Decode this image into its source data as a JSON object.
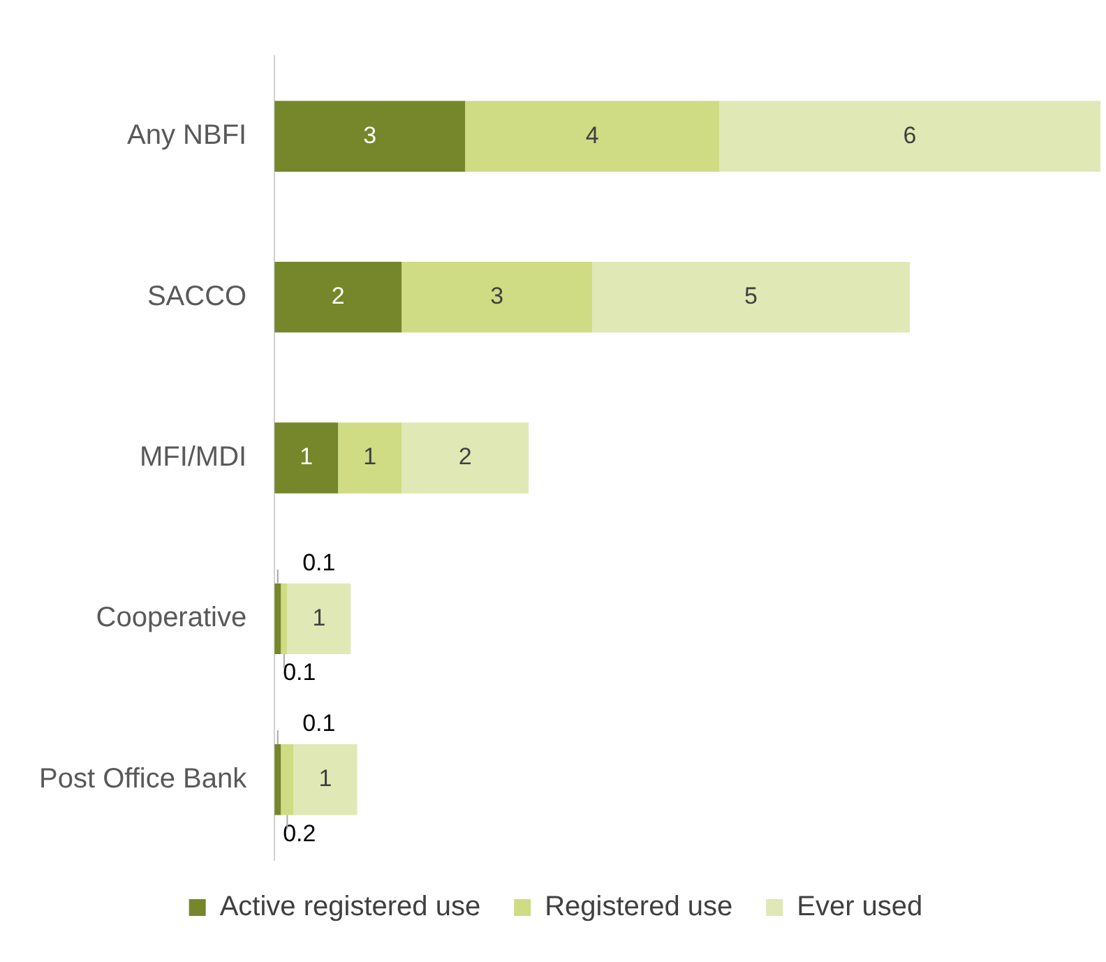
{
  "chart_data": {
    "type": "bar",
    "orientation": "horizontal",
    "stacked": true,
    "categories": [
      "Any NBFI",
      "SACCO",
      "MFI/MDI",
      "Cooperative",
      "Post Office Bank"
    ],
    "series": [
      {
        "name": "Active registered use",
        "color": "#76862a",
        "values": [
          3,
          2,
          1,
          0.1,
          0.1
        ]
      },
      {
        "name": "Registered use",
        "color": "#cfdc84",
        "values": [
          4,
          3,
          1,
          0.1,
          0.2
        ]
      },
      {
        "name": "Ever used",
        "color": "#e0e8b6",
        "values": [
          6,
          5,
          2,
          1,
          1
        ]
      }
    ],
    "data_labels": true,
    "legend": "bottom"
  }
}
